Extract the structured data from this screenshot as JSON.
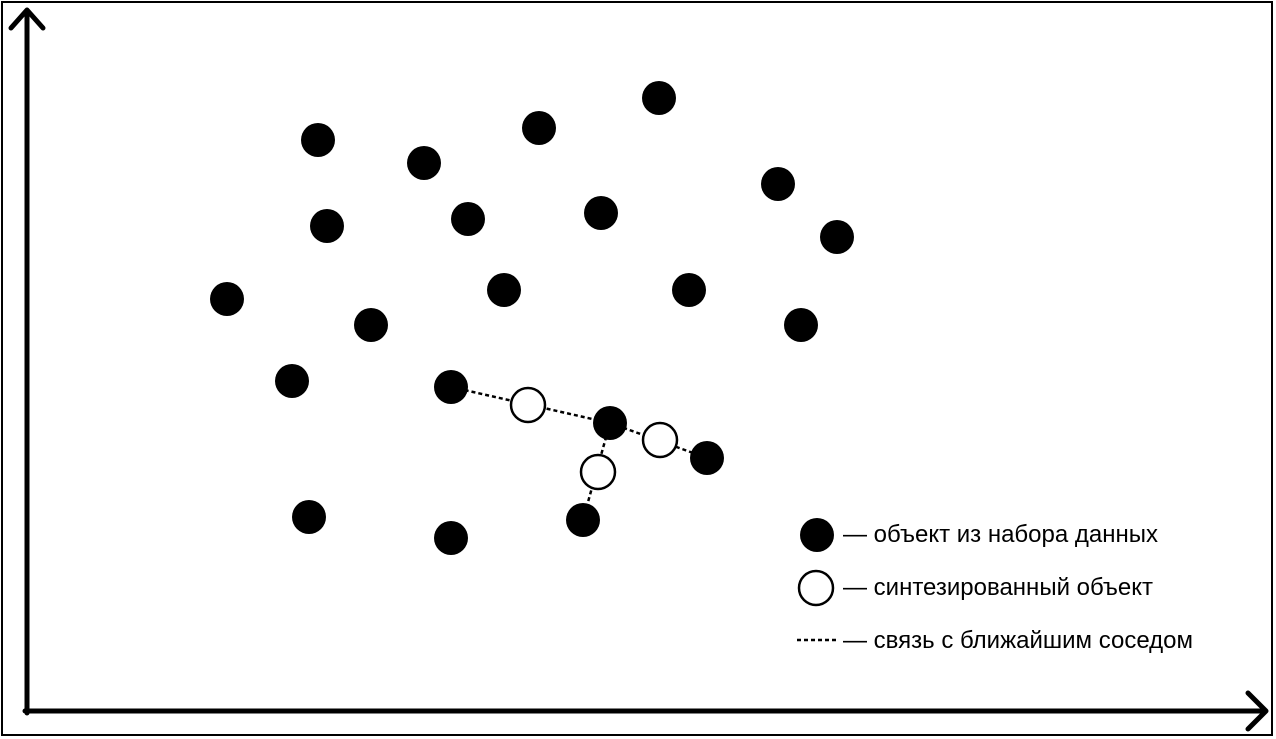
{
  "colors": {
    "dataset_point_fill": "#000000",
    "synthesized_point_fill": "#ffffff",
    "synthesized_point_stroke": "#000000",
    "axis": "#000000",
    "link": "#000000"
  },
  "points": {
    "dataset": [
      [
        318,
        140
      ],
      [
        424,
        163
      ],
      [
        539,
        128
      ],
      [
        659,
        98
      ],
      [
        327,
        226
      ],
      [
        468,
        219
      ],
      [
        601,
        213
      ],
      [
        778,
        184
      ],
      [
        837,
        237
      ],
      [
        227,
        299
      ],
      [
        371,
        325
      ],
      [
        504,
        290
      ],
      [
        689,
        290
      ],
      [
        801,
        325
      ],
      [
        292,
        381
      ],
      [
        451,
        387
      ],
      [
        610,
        423
      ],
      [
        707,
        458
      ],
      [
        309,
        517
      ],
      [
        451,
        538
      ],
      [
        583,
        520
      ]
    ],
    "synthesized": [
      [
        528,
        405
      ],
      [
        660,
        440
      ],
      [
        598,
        472
      ]
    ],
    "links": [
      [
        [
          451,
          387
        ],
        [
          610,
          423
        ]
      ],
      [
        [
          610,
          423
        ],
        [
          707,
          458
        ]
      ],
      [
        [
          610,
          423
        ],
        [
          583,
          520
        ]
      ]
    ]
  },
  "legend": {
    "dataset_label": "— объект из набора данных",
    "synthesized_label": "— синтезированный объект",
    "link_label": "— связь с ближайшим соседом"
  }
}
